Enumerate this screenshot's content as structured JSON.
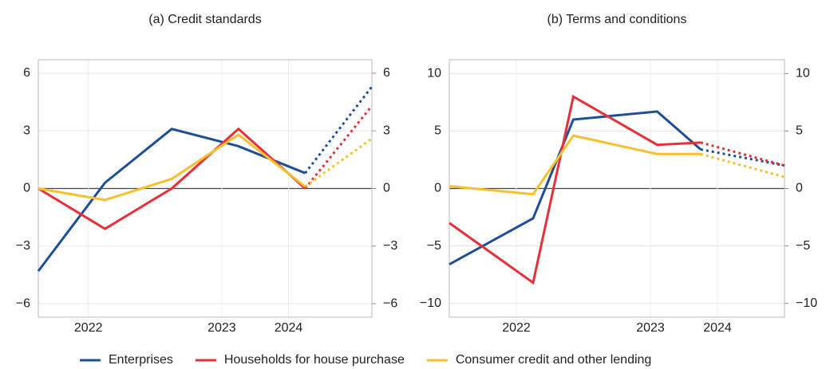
{
  "chart_data": [
    {
      "type": "line",
      "title": "(a) Credit standards",
      "x": [
        0,
        1,
        2,
        3,
        4,
        5
      ],
      "xlim": [
        0,
        5
      ],
      "xticks": [
        {
          "value": 0.75,
          "label": "2022"
        },
        {
          "value": 2.75,
          "label": "2023"
        },
        {
          "value": 3.75,
          "label": "2024"
        }
      ],
      "ylim": [
        -6.7,
        6.7
      ],
      "yticks": [
        {
          "value": -6,
          "label": "−6"
        },
        {
          "value": -3,
          "label": "−3"
        },
        0,
        3,
        6
      ],
      "y2lim": [
        -6.7,
        6.7
      ],
      "y2ticks": [
        {
          "value": -6,
          "label": "−6"
        },
        {
          "value": -3,
          "label": "−3"
        },
        0,
        3,
        6
      ],
      "grid": true,
      "dotted_from": 4,
      "series": [
        {
          "name": "Enterprises",
          "color": "#1f4e99",
          "values": [
            -4.3,
            0.3,
            3.1,
            2.2,
            0.8,
            5.3
          ]
        },
        {
          "name": "Households for house purchase",
          "color": "#e8303a",
          "values": [
            0,
            -2.1,
            0,
            3.1,
            0,
            4.3
          ]
        },
        {
          "name": "Consumer credit and other lending",
          "color": "#f6c12f",
          "values": [
            0,
            -0.6,
            0.5,
            2.8,
            0.1,
            2.6
          ]
        }
      ]
    },
    {
      "type": "line",
      "title": "(b) Terms and conditions",
      "x": [
        0,
        1.25,
        1.85,
        3.1,
        3.75,
        5
      ],
      "xlim": [
        0,
        5
      ],
      "xticks": [
        {
          "value": 1,
          "label": "2022"
        },
        {
          "value": 3,
          "label": "2023"
        },
        {
          "value": 4,
          "label": "2024"
        }
      ],
      "ylim": [
        -11.2,
        11.2
      ],
      "yticks": [
        {
          "value": -10,
          "label": "−10"
        },
        {
          "value": -5,
          "label": "−5"
        },
        0,
        5,
        10
      ],
      "y2lim": [
        -11.2,
        11.2
      ],
      "y2ticks": [
        {
          "value": -10,
          "label": "−10"
        },
        {
          "value": -5,
          "label": "−5"
        },
        0,
        5,
        10
      ],
      "grid": true,
      "dotted_from": 4,
      "series": [
        {
          "name": "Enterprises",
          "color": "#1f4e99",
          "values": [
            -6.6,
            -2.6,
            6.0,
            6.7,
            3.4,
            2.0
          ]
        },
        {
          "name": "Households for house purchase",
          "color": "#e8303a",
          "values": [
            -3.0,
            -8.2,
            8.0,
            3.8,
            4.0,
            2.0
          ]
        },
        {
          "name": "Consumer credit and other lending",
          "color": "#f6c12f",
          "values": [
            0.2,
            -0.5,
            4.6,
            3.0,
            3.0,
            1.0
          ]
        }
      ]
    }
  ]
}
